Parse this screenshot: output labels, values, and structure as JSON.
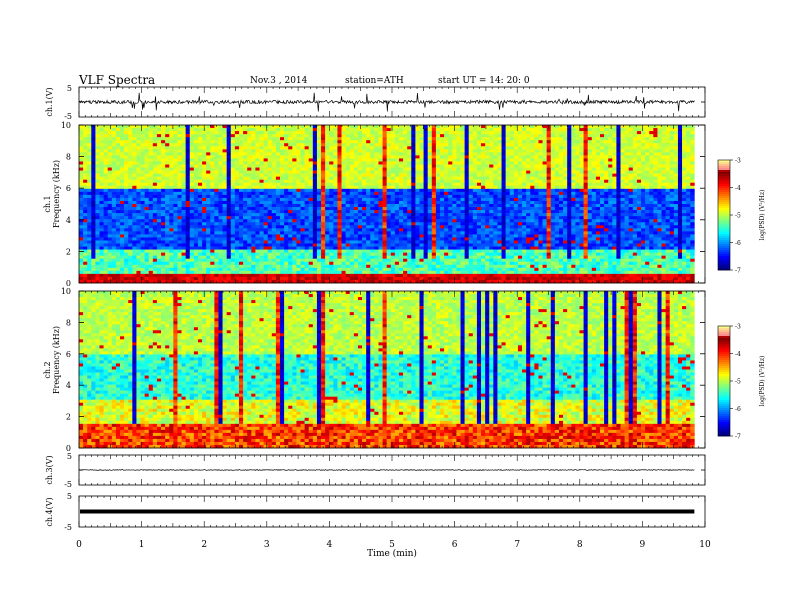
{
  "header": {
    "title": "VLF  Spectra",
    "date": "Nov.3  , 2014",
    "station": "station=ATH",
    "start": "start  UT  =   14: 20: 0"
  },
  "chart_data": [
    {
      "type": "line",
      "name": "ch1-waveform",
      "ylabel": "ch.1(V)",
      "ylim": [
        -5,
        5
      ],
      "yticks": [
        "5",
        "-5"
      ],
      "baseline": 0
    },
    {
      "type": "heatmap",
      "name": "ch1-spectrogram",
      "ylabel": "Frequency  (kHz)",
      "chlabel": "ch.1",
      "ylim": [
        0,
        10
      ],
      "yticks": [
        "0",
        "2",
        "4",
        "6",
        "8",
        "10"
      ],
      "colorbar": {
        "label": "log(PSD) (V²/Hz)",
        "range": [
          -7,
          -3
        ],
        "ticks": [
          "-3",
          "-4",
          "-5",
          "-6",
          "-7"
        ]
      }
    },
    {
      "type": "heatmap",
      "name": "ch2-spectrogram",
      "ylabel": "Frequency  (kHz)",
      "chlabel": "ch.2",
      "ylim": [
        0,
        10
      ],
      "yticks": [
        "0",
        "2",
        "4",
        "6",
        "8",
        "10"
      ],
      "colorbar": {
        "label": "log(PSD) (V²/Hz)",
        "range": [
          -7,
          -3
        ],
        "ticks": [
          "-3",
          "-4",
          "-5",
          "-6",
          "-7"
        ]
      }
    },
    {
      "type": "line",
      "name": "ch3-waveform",
      "ylabel": "ch.3(V)",
      "ylim": [
        -5,
        5
      ],
      "yticks": [
        "5",
        "-5"
      ],
      "baseline": 0
    },
    {
      "type": "line",
      "name": "ch4-waveform",
      "ylabel": "ch.4(V)",
      "ylim": [
        -5,
        5
      ],
      "yticks": [
        "5",
        "-5"
      ],
      "baseline": 0
    }
  ],
  "xaxis": {
    "label": "Time  (min)",
    "range": [
      0,
      10
    ],
    "ticks": [
      "0",
      "1",
      "2",
      "3",
      "4",
      "5",
      "6",
      "7",
      "8",
      "9",
      "10"
    ],
    "data_end": 9.83
  }
}
